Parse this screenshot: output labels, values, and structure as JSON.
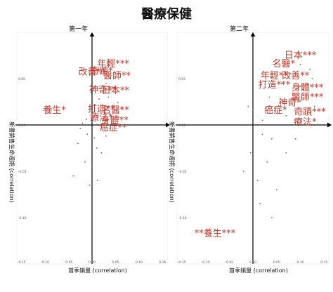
{
  "header": {
    "title": "醫療保健"
  },
  "chart_data": [
    {
      "type": "scatter",
      "title": "第一年",
      "xlabel": "首季銷量 (correlation)",
      "ylabel": "新書銷售生命週期 (correlation)",
      "xlim": [
        -0.16,
        0.16
      ],
      "ylim": [
        -0.15,
        0.1
      ],
      "xticks": [
        "-0.15",
        "-0.10",
        "-0.05",
        "0.00",
        "0.05",
        "0.10",
        "0.15"
      ],
      "yticks": [
        "0.05",
        "0.00",
        "-0.05",
        "-0.10"
      ],
      "ytick_values": [
        0.05,
        0.0,
        -0.05,
        -0.1
      ],
      "series": [
        {
          "points": [
            {
              "label": "年輕***",
              "x": 0.045,
              "y": 0.063
            },
            {
              "label": "改善**",
              "x": 0.0,
              "y": 0.054
            },
            {
              "label": "奇蹟*",
              "x": 0.02,
              "y": 0.055
            },
            {
              "label": "醫師**",
              "x": 0.053,
              "y": 0.05
            },
            {
              "label": "神奇**",
              "x": 0.023,
              "y": 0.035
            },
            {
              "label": "日本**",
              "x": 0.05,
              "y": 0.034
            },
            {
              "label": "養生*",
              "x": -0.08,
              "y": 0.013
            },
            {
              "label": "打造**",
              "x": 0.02,
              "y": 0.014
            },
            {
              "label": "名醫**",
              "x": 0.05,
              "y": 0.013
            },
            {
              "label": "療法*",
              "x": 0.02,
              "y": 0.005
            },
            {
              "label": "身體**",
              "x": 0.048,
              "y": 0.002
            },
            {
              "label": "癌症**",
              "x": 0.045,
              "y": -0.006
            }
          ]
        }
      ],
      "background_points": [
        [
          0.01,
          0.06
        ],
        [
          0.03,
          0.045
        ],
        [
          0.04,
          0.038
        ],
        [
          0.035,
          0.03
        ],
        [
          0.015,
          0.028
        ],
        [
          0.005,
          0.04
        ],
        [
          0.028,
          0.02
        ],
        [
          0.055,
          0.024
        ],
        [
          0.062,
          0.018
        ],
        [
          0.006,
          0.022
        ],
        [
          -0.012,
          0.006
        ],
        [
          -0.025,
          -0.004
        ],
        [
          -0.01,
          -0.01
        ],
        [
          0.005,
          -0.014
        ],
        [
          -0.03,
          -0.02
        ],
        [
          0.01,
          -0.025
        ],
        [
          0.02,
          -0.03
        ],
        [
          -0.015,
          -0.04
        ],
        [
          0.0,
          -0.045
        ],
        [
          -0.04,
          -0.055
        ],
        [
          0.012,
          -0.06
        ],
        [
          -0.005,
          -0.065
        ],
        [
          0.03,
          -0.012
        ],
        [
          -0.02,
          0.002
        ]
      ]
    },
    {
      "type": "scatter",
      "title": "第二年",
      "xlabel": "首季銷量 (correlation)",
      "ylabel": "新書銷售生命週期 (correlation)",
      "xlim": [
        -0.16,
        0.16
      ],
      "ylim": [
        -0.15,
        0.1
      ],
      "xticks": [
        "-0.15",
        "-0.10",
        "-0.05",
        "0.00",
        "0.05",
        "0.10",
        "0.15"
      ],
      "yticks": [
        "0.05",
        "0.00",
        "-0.05",
        "-0.10"
      ],
      "ytick_values": [
        0.05,
        0.0,
        -0.05,
        -0.1
      ],
      "series": [
        {
          "points": [
            {
              "label": "日本***",
              "x": 0.1,
              "y": 0.072
            },
            {
              "label": "名醫*",
              "x": 0.065,
              "y": 0.063
            },
            {
              "label": "年輕**",
              "x": 0.045,
              "y": 0.05
            },
            {
              "label": "改善**",
              "x": 0.09,
              "y": 0.05
            },
            {
              "label": "打造***",
              "x": 0.045,
              "y": 0.04
            },
            {
              "label": "身體***",
              "x": 0.115,
              "y": 0.037
            },
            {
              "label": "醫師***",
              "x": 0.115,
              "y": 0.027
            },
            {
              "label": "神奇*",
              "x": 0.078,
              "y": 0.021
            },
            {
              "label": "癌症*",
              "x": 0.048,
              "y": 0.013
            },
            {
              "label": "奇蹟***",
              "x": 0.12,
              "y": 0.011
            },
            {
              "label": "療法*",
              "x": 0.11,
              "y": 0.0
            },
            {
              "label": "**養生***",
              "x": -0.08,
              "y": -0.12
            }
          ]
        }
      ],
      "background_points": [
        [
          0.1,
          0.065
        ],
        [
          0.12,
          0.06
        ],
        [
          0.08,
          0.055
        ],
        [
          0.06,
          0.045
        ],
        [
          0.1,
          0.042
        ],
        [
          0.125,
          0.05
        ],
        [
          0.035,
          0.03
        ],
        [
          0.09,
          0.03
        ],
        [
          0.13,
          0.02
        ],
        [
          0.07,
          0.01
        ],
        [
          0.02,
          0.005
        ],
        [
          0.0,
          0.012
        ],
        [
          -0.01,
          0.02
        ],
        [
          0.02,
          -0.01
        ],
        [
          0.04,
          -0.015
        ],
        [
          -0.005,
          -0.03
        ],
        [
          0.03,
          -0.04
        ],
        [
          0.01,
          -0.06
        ],
        [
          0.05,
          -0.07
        ],
        [
          -0.02,
          -0.05
        ],
        [
          0.07,
          -0.03
        ],
        [
          0.015,
          -0.085
        ],
        [
          0.04,
          -0.1
        ],
        [
          0.09,
          -0.015
        ]
      ]
    }
  ]
}
